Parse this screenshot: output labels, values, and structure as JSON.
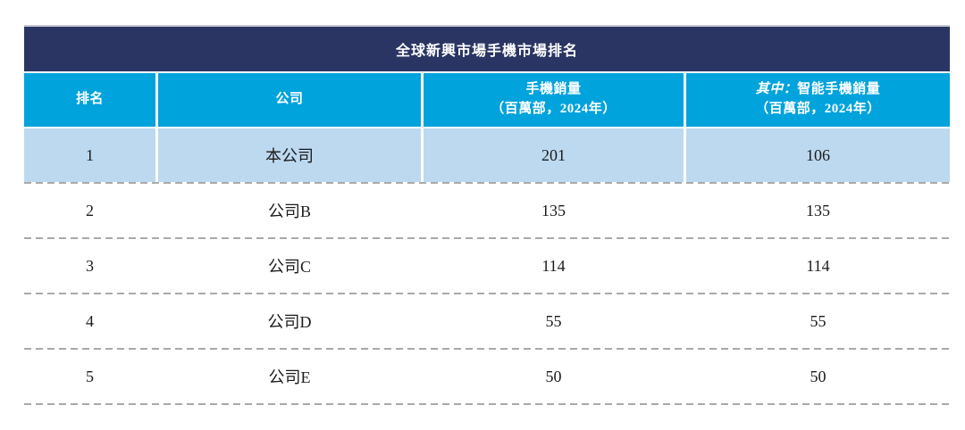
{
  "table": {
    "title": "全球新興市場手機市場排名",
    "headers": [
      {
        "line1": "排名"
      },
      {
        "line1": "公司"
      },
      {
        "line1": "手機銷量",
        "line2": "（百萬部，2024年）"
      },
      {
        "italic_prefix": "其中：",
        "line1": "智能手機銷量",
        "line2": "（百萬部，2024年）"
      }
    ],
    "rows": [
      {
        "rank": "1",
        "company": "本公司",
        "phone_sales_millions": "201",
        "smartphone_sales_millions": "106",
        "highlighted": true
      },
      {
        "rank": "2",
        "company": "公司B",
        "phone_sales_millions": "135",
        "smartphone_sales_millions": "135",
        "highlighted": false
      },
      {
        "rank": "3",
        "company": "公司C",
        "phone_sales_millions": "114",
        "smartphone_sales_millions": "114",
        "highlighted": false
      },
      {
        "rank": "4",
        "company": "公司D",
        "phone_sales_millions": "55",
        "smartphone_sales_millions": "55",
        "highlighted": false
      },
      {
        "rank": "5",
        "company": "公司E",
        "phone_sales_millions": "50",
        "smartphone_sales_millions": "50",
        "highlighted": false
      }
    ]
  },
  "colors": {
    "title_bar_bg": "#2a3563",
    "header_bg": "#00a3dc",
    "highlight_row_bg": "#bdd9f0",
    "dashed_divider": "#a9a9a9",
    "title_text": "#ffffff",
    "body_text": "#1b1b1b"
  }
}
